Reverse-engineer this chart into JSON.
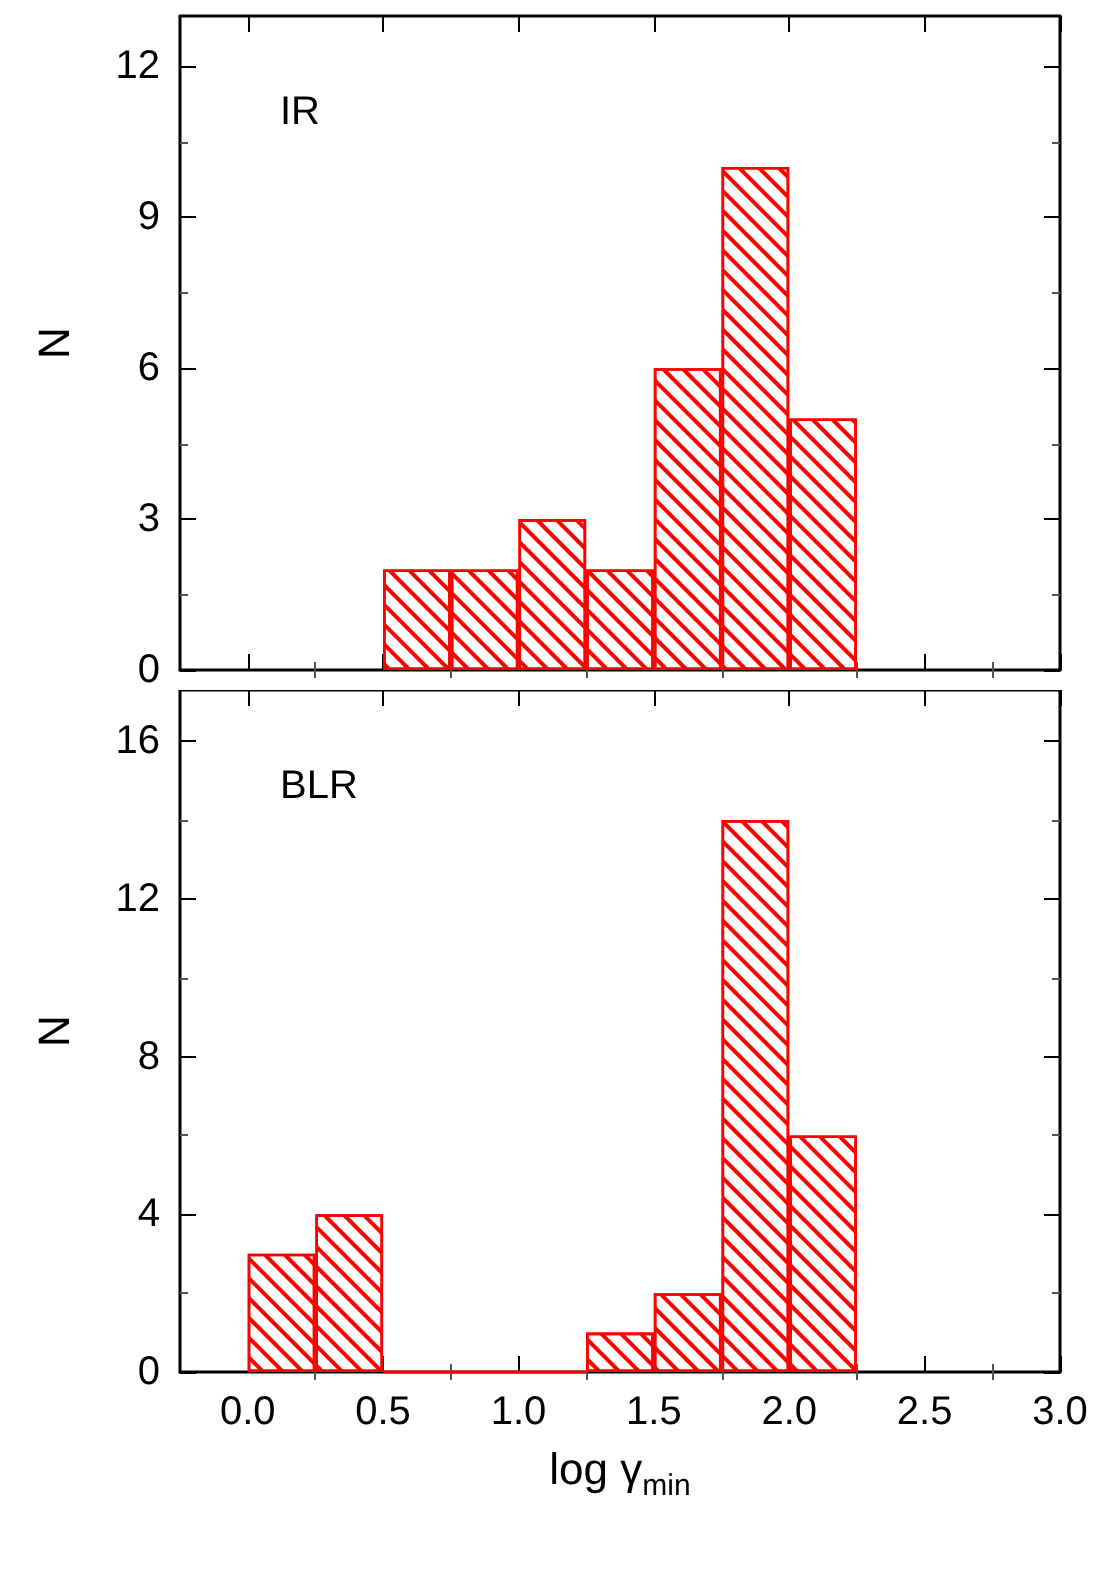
{
  "chart_data": [
    {
      "type": "histogram",
      "annotations": [
        "IR"
      ],
      "ylabel": "N",
      "color": "#ff0000",
      "bins": [
        0.5,
        0.75,
        1.0,
        1.25,
        1.5,
        1.75,
        2.0,
        2.25
      ],
      "values": [
        2,
        2,
        3,
        2,
        6,
        10,
        5
      ],
      "xlim": [
        -0.25,
        3.0
      ],
      "xticks": [
        {
          "value": 0,
          "label": null
        },
        {
          "value": 0.5,
          "label": null
        },
        {
          "value": 1,
          "label": null
        },
        {
          "value": 1.5,
          "label": null
        },
        {
          "value": 2,
          "label": null
        },
        {
          "value": 2.5,
          "label": null
        },
        {
          "value": 3,
          "label": null
        }
      ],
      "ylim": [
        0,
        13
      ],
      "yticks": [
        0,
        3,
        6,
        9,
        12
      ],
      "tick_labels": "y",
      "grid": false
    },
    {
      "type": "histogram",
      "annotations": [
        "BLR"
      ],
      "xlabel": "log γ$_{min}$",
      "ylabel": "N",
      "color": "#ff0000",
      "bins": [
        0.0,
        0.25,
        0.5,
        0.75,
        1.0,
        1.25,
        1.5,
        1.75,
        2.0,
        2.25
      ],
      "values": [
        3,
        4,
        0,
        0,
        0,
        1,
        2,
        14,
        6
      ],
      "xlim": [
        -0.25,
        3.0
      ],
      "xticks": [
        {
          "value": 0,
          "label": "0.0"
        },
        {
          "value": 0.5,
          "label": "0.5"
        },
        {
          "value": 1,
          "label": "1.0"
        },
        {
          "value": 1.5,
          "label": "1.5"
        },
        {
          "value": 2,
          "label": "2.0"
        },
        {
          "value": 2.5,
          "label": "2.5"
        },
        {
          "value": 3,
          "label": "3.0"
        }
      ],
      "ylim": [
        0,
        17.3
      ],
      "yticks": [
        0,
        4,
        8,
        12,
        16
      ],
      "grid": false
    }
  ]
}
